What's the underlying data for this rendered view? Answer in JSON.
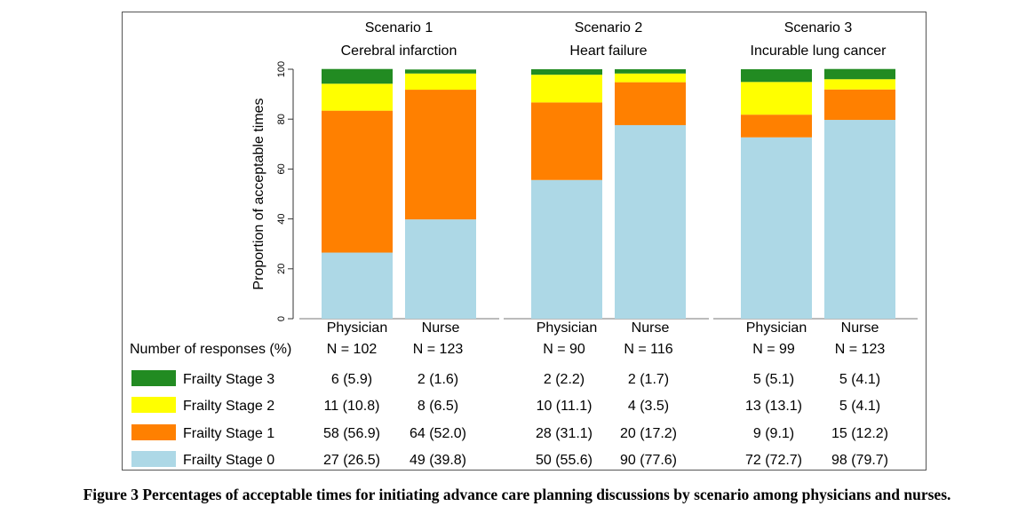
{
  "chart_data": {
    "type": "bar",
    "stacked": true,
    "ylabel": "Proportion of acceptable times",
    "ylim": [
      0,
      100
    ],
    "yticks": [
      0,
      20,
      40,
      60,
      80,
      100
    ],
    "table_header": "Number of responses (%)",
    "scenarios": [
      {
        "title_line1": "Scenario 1",
        "title_line2": "Cerebral infarction",
        "groups": [
          {
            "label": "Physician",
            "n": "N = 102",
            "values": [
              26.5,
              56.9,
              10.8,
              5.9
            ],
            "cells": [
              "27 (26.5)",
              "58 (56.9)",
              "11 (10.8)",
              "6 (5.9)"
            ]
          },
          {
            "label": "Nurse",
            "n": "N = 123",
            "values": [
              39.8,
              52.0,
              6.5,
              1.6
            ],
            "cells": [
              "49 (39.8)",
              "64 (52.0)",
              "8 (6.5)",
              "2 (1.6)"
            ]
          }
        ]
      },
      {
        "title_line1": "Scenario 2",
        "title_line2": "Heart failure",
        "groups": [
          {
            "label": "Physician",
            "n": "N = 90",
            "values": [
              55.6,
              31.1,
              11.1,
              2.2
            ],
            "cells": [
              "50 (55.6)",
              "28 (31.1)",
              "10 (11.1)",
              "2 (2.2)"
            ]
          },
          {
            "label": "Nurse",
            "n": "N = 116",
            "values": [
              77.6,
              17.2,
              3.5,
              1.7
            ],
            "cells": [
              "90 (77.6)",
              "20 (17.2)",
              "4 (3.5)",
              "2 (1.7)"
            ]
          }
        ]
      },
      {
        "title_line1": "Scenario 3",
        "title_line2": "Incurable lung cancer",
        "groups": [
          {
            "label": "Physician",
            "n": "N = 99",
            "values": [
              72.7,
              9.1,
              13.1,
              5.1
            ],
            "cells": [
              "72 (72.7)",
              "9 (9.1)",
              "13 (13.1)",
              "5 (5.1)"
            ]
          },
          {
            "label": "Nurse",
            "n": "N = 123",
            "values": [
              79.7,
              12.2,
              4.1,
              4.1
            ],
            "cells": [
              "98 (79.7)",
              "15 (12.2)",
              "5 (4.1)",
              "5 (4.1)"
            ]
          }
        ]
      }
    ],
    "series": [
      {
        "name": "Frailty Stage 0",
        "color": "#add8e6"
      },
      {
        "name": "Frailty Stage 1",
        "color": "#ff8000"
      },
      {
        "name": "Frailty Stage 2",
        "color": "#ffff00"
      },
      {
        "name": "Frailty Stage 3",
        "color": "#228b22"
      }
    ]
  },
  "caption": "Figure 3 Percentages of acceptable times for initiating advance care planning discussions by scenario among physicians and nurses."
}
